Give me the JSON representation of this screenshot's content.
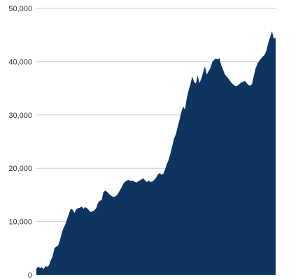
{
  "chart_data": {
    "type": "area",
    "title": "",
    "xlabel": "",
    "ylabel": "",
    "ylim": [
      0,
      50000
    ],
    "yticks": [
      0,
      10000,
      20000,
      30000,
      40000,
      50000
    ],
    "ytick_labels": [
      "0",
      "10,000",
      "20,000",
      "30,000",
      "40,000",
      "50,000"
    ],
    "grid": true,
    "legend": "none",
    "color": "#0d3560",
    "series": [
      {
        "values": [
          1200,
          1500,
          1300,
          1400,
          1100,
          1600,
          1500,
          1800,
          2800,
          3500,
          5000,
          5300,
          5500,
          6500,
          7800,
          8800,
          9500,
          10500,
          11500,
          12400,
          12200,
          11600,
          12300,
          12500,
          12600,
          12800,
          12400,
          12700,
          12500,
          12100,
          11800,
          11900,
          12100,
          12500,
          13500,
          13900,
          14000,
          15500,
          15800,
          15600,
          15200,
          14900,
          14700,
          14600,
          14800,
          15200,
          15800,
          16400,
          17100,
          17500,
          17700,
          17800,
          17600,
          17700,
          17500,
          17300,
          17500,
          17700,
          17900,
          18100,
          17700,
          17400,
          17700,
          17400,
          17500,
          17800,
          18200,
          18800,
          19100,
          18800,
          18900,
          19800,
          20800,
          21600,
          22800,
          24200,
          25600,
          26400,
          27800,
          29100,
          30600,
          31600,
          31000,
          33200,
          34600,
          35800,
          37200,
          36200,
          35900,
          37400,
          36000,
          36800,
          38000,
          39100,
          37600,
          38200,
          38800,
          39900,
          40300,
          40600,
          40400,
          40700,
          39300,
          38500,
          37600,
          37200,
          36800,
          36300,
          35900,
          35600,
          35400,
          35500,
          35800,
          36100,
          36200,
          36400,
          36000,
          35600,
          35500,
          35800,
          37400,
          38800,
          39600,
          40200,
          40600,
          41000,
          41300,
          42200,
          43600,
          44600,
          45700,
          44300,
          44500
        ]
      }
    ]
  }
}
